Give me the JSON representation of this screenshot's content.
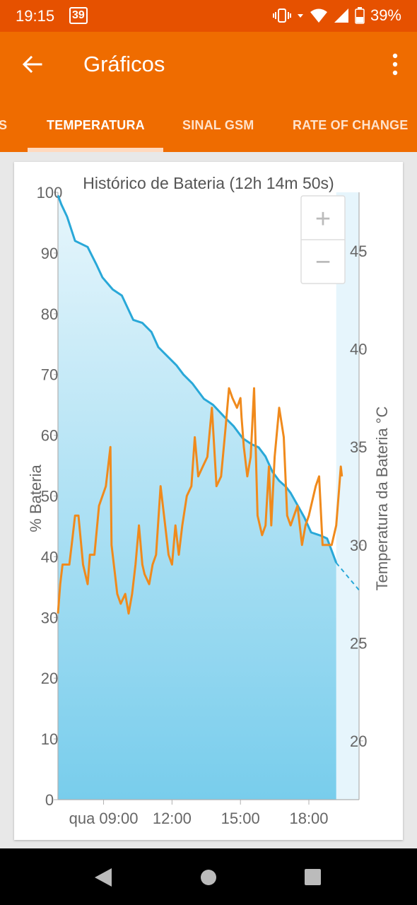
{
  "status": {
    "time": "19:15",
    "badge": "39",
    "battery": "39%",
    "icons": [
      "vibrate-icon",
      "wifi-icon",
      "signal-icon",
      "battery-icon"
    ]
  },
  "appbar": {
    "title": "Gráficos",
    "tabs": [
      {
        "label": "S"
      },
      {
        "label": "TEMPERATURA"
      },
      {
        "label": "SINAL GSM"
      },
      {
        "label": "RATE OF CHANGE"
      }
    ],
    "selected_tab": 1
  },
  "zoom": {
    "plus": "+",
    "minus": "−"
  },
  "colors": {
    "status": "#e65100",
    "appbar": "#ef6c00",
    "battery_line": "#29a8d8",
    "temperature_line": "#f08a1c"
  },
  "chart_data": {
    "type": "line",
    "title": "Histórico de Bateria (12h 14m 50s)",
    "ylabel": "% Bateria",
    "y2label": "Temperatura da Bateria °C",
    "ylim": [
      0,
      100
    ],
    "y2lim": [
      17,
      48
    ],
    "yticks": [
      "0",
      "10",
      "20",
      "30",
      "40",
      "50",
      "60",
      "70",
      "80",
      "90",
      "100"
    ],
    "y2ticks": [
      "20",
      "25",
      "30",
      "35",
      "40",
      "45"
    ],
    "xticks": [
      {
        "label": "qua 09:00",
        "hour": 9
      },
      {
        "label": "12:00",
        "hour": 12
      },
      {
        "label": "15:00",
        "hour": 15
      },
      {
        "label": "18:00",
        "hour": 18
      }
    ],
    "xlim": [
      7.0,
      20.2
    ],
    "series": [
      {
        "name": "% Bateria",
        "axis": "left",
        "hours": [
          7.0,
          7.15,
          7.4,
          7.75,
          8.3,
          8.5,
          8.7,
          8.95,
          9.4,
          9.8,
          10.3,
          10.7,
          11.1,
          11.4,
          11.8,
          12.2,
          12.5,
          12.9,
          13.4,
          13.8,
          14.3,
          14.7,
          15.1,
          15.5,
          15.8,
          16.1,
          16.4,
          16.7,
          17.0,
          17.2,
          17.5,
          17.8,
          18.1,
          18.5,
          18.8,
          19.0,
          19.2
        ],
        "values": [
          99.5,
          98,
          96,
          92,
          91,
          89.5,
          88,
          86,
          84,
          83,
          79,
          78.5,
          77,
          74.5,
          73,
          71.5,
          70,
          68.5,
          66,
          65,
          63,
          61.5,
          59.5,
          58.5,
          58,
          56.5,
          54,
          52.5,
          51.5,
          50.5,
          48.5,
          46.5,
          44,
          43.5,
          43,
          41,
          39
        ]
      },
      {
        "name": "% Bateria (projeção)",
        "axis": "left",
        "style": "dashed",
        "hours": [
          19.2,
          20.2
        ],
        "values": [
          39,
          34.5
        ]
      },
      {
        "name": "Temperatura da Bateria °C",
        "axis": "right",
        "hours": [
          7.0,
          7.1,
          7.2,
          7.5,
          7.6,
          7.75,
          7.9,
          8.1,
          8.3,
          8.4,
          8.6,
          8.8,
          9.1,
          9.3,
          9.35,
          9.5,
          9.6,
          9.75,
          9.95,
          10.1,
          10.25,
          10.4,
          10.55,
          10.7,
          10.8,
          11.0,
          11.15,
          11.3,
          11.5,
          11.7,
          11.85,
          12.0,
          12.15,
          12.3,
          12.45,
          12.65,
          12.85,
          13.0,
          13.15,
          13.35,
          13.55,
          13.75,
          13.95,
          14.15,
          14.35,
          14.5,
          14.65,
          14.85,
          15.0,
          15.05,
          15.15,
          15.3,
          15.45,
          15.6,
          15.75,
          15.95,
          16.1,
          16.25,
          16.35,
          16.5,
          16.7,
          16.9,
          17.05,
          17.2,
          17.35,
          17.5,
          17.7,
          17.85,
          18.0,
          18.1,
          18.3,
          18.45,
          18.6,
          18.8,
          19.0,
          19.2,
          19.3,
          19.4,
          19.45
        ],
        "values": [
          26.5,
          28,
          29,
          29,
          30,
          31.5,
          31.5,
          29,
          28,
          29.5,
          29.5,
          32,
          33,
          35,
          30,
          28.5,
          27.5,
          27,
          27.5,
          26.5,
          27.5,
          29,
          31,
          29,
          28.5,
          28,
          29,
          29.5,
          33,
          31,
          29.5,
          29,
          31,
          29.5,
          31,
          32.5,
          33,
          35.5,
          33.5,
          34,
          34.5,
          37,
          33,
          33.5,
          36,
          38,
          37.5,
          37,
          37.5,
          36.5,
          35,
          33.5,
          34.5,
          38,
          31.5,
          30.5,
          31,
          34,
          31,
          34.5,
          37,
          35.5,
          31.5,
          31,
          31.5,
          32,
          30,
          31,
          31.5,
          32,
          33,
          33.5,
          30,
          30,
          30,
          31,
          32.5,
          34,
          33.5
        ]
      }
    ]
  }
}
